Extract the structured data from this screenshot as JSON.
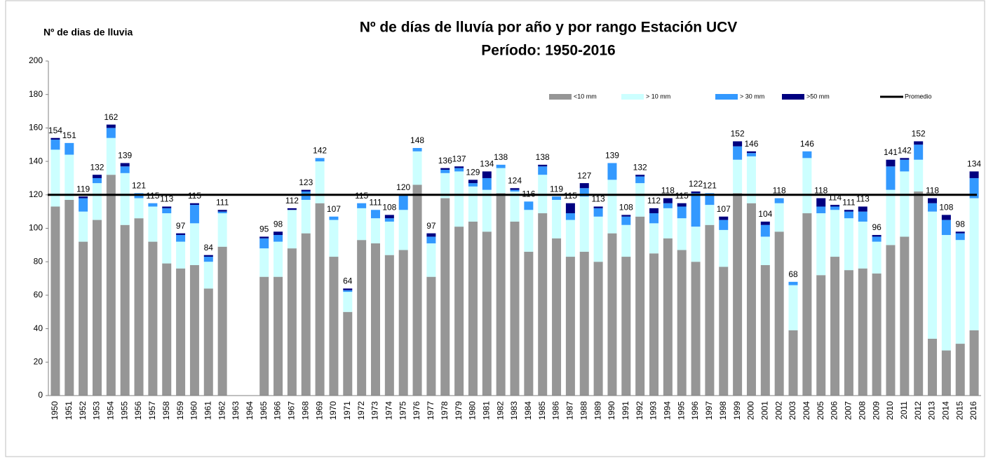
{
  "chart_data": {
    "type": "stacked_bar",
    "title": "Nº de días de lluvía por año y por rango Estación UCV",
    "subtitle": "Período:  1950-2016",
    "ylabel": "Nº de dias de lluvia",
    "categories": [
      "1950",
      "1951",
      "1952",
      "1953",
      "1954",
      "1955",
      "1956",
      "1957",
      "1958",
      "1959",
      "1960",
      "1961",
      "1962",
      "1963",
      "1964",
      "1965",
      "1966",
      "1967",
      "1968",
      "1969",
      "1970",
      "1971",
      "1972",
      "1973",
      "1974",
      "1975",
      "1976",
      "1977",
      "1978",
      "1979",
      "1980",
      "1981",
      "1982",
      "1983",
      "1984",
      "1985",
      "1986",
      "1987",
      "1988",
      "1989",
      "1990",
      "1991",
      "1992",
      "1993",
      "1994",
      "1995",
      "1996",
      "1997",
      "1998",
      "1999",
      "2000",
      "2001",
      "2002",
      "2003",
      "2004",
      "2005",
      "2006",
      "2007",
      "2008",
      "2009",
      "2010",
      "2011",
      "2012",
      "2013",
      "2014",
      "2015",
      "2016"
    ],
    "series": [
      {
        "name": "<10 mm",
        "color": "#969696",
        "values": [
          113,
          117,
          92,
          105,
          132,
          102,
          106,
          92,
          79,
          76,
          78,
          64,
          89,
          null,
          null,
          71,
          71,
          88,
          97,
          115,
          83,
          50,
          93,
          91,
          84,
          87,
          126,
          71,
          118,
          101,
          104,
          98,
          121,
          104,
          86,
          109,
          94,
          83,
          86,
          80,
          97,
          83,
          107,
          85,
          94,
          87,
          80,
          102,
          77,
          121,
          115,
          78,
          98,
          39,
          109,
          72,
          83,
          75,
          76,
          73,
          90,
          95,
          122,
          34,
          27,
          31,
          39
        ]
      },
      {
        "name": "> 10 mm",
        "color": "#ccffff",
        "values": [
          34,
          27,
          18,
          22,
          22,
          31,
          12,
          21,
          30,
          16,
          25,
          16,
          20,
          null,
          null,
          17,
          21,
          23,
          20,
          25,
          22,
          12,
          19,
          15,
          20,
          24,
          20,
          20,
          15,
          33,
          21,
          25,
          15,
          18,
          25,
          23,
          23,
          22,
          33,
          27,
          32,
          19,
          20,
          18,
          18,
          19,
          21,
          12,
          22,
          20,
          28,
          17,
          17,
          27,
          33,
          37,
          28,
          31,
          28,
          19,
          33,
          39,
          19,
          76,
          69,
          62,
          79
        ]
      },
      {
        "name": "> 30 mm",
        "color": "#3399ff",
        "values": [
          6,
          7,
          8,
          3,
          6,
          4,
          3,
          2,
          3,
          4,
          11,
          3,
          1,
          null,
          null,
          6,
          4,
          0,
          5,
          2,
          2,
          1,
          3,
          5,
          2,
          9,
          2,
          4,
          2,
          2,
          2,
          7,
          2,
          1,
          5,
          5,
          2,
          4,
          5,
          5,
          10,
          5,
          4,
          6,
          3,
          7,
          20,
          7,
          6,
          8,
          2,
          7,
          3,
          2,
          4,
          4,
          2,
          4,
          6,
          3,
          14,
          7,
          9,
          5,
          9,
          4,
          12
        ]
      },
      {
        "name": ">50 mm",
        "color": "#000080",
        "values": [
          1,
          0,
          1,
          2,
          2,
          2,
          0,
          0,
          1,
          1,
          1,
          1,
          1,
          null,
          null,
          1,
          2,
          1,
          1,
          0,
          0,
          1,
          0,
          0,
          2,
          0,
          0,
          2,
          1,
          1,
          2,
          4,
          0,
          1,
          0,
          1,
          0,
          6,
          3,
          1,
          0,
          1,
          1,
          3,
          3,
          2,
          1,
          0,
          2,
          3,
          1,
          2,
          0,
          0,
          0,
          5,
          1,
          1,
          3,
          1,
          4,
          1,
          2,
          3,
          3,
          1,
          4
        ]
      }
    ],
    "totals": [
      154,
      151,
      119,
      132,
      162,
      139,
      121,
      115,
      113,
      97,
      115,
      84,
      111,
      null,
      null,
      95,
      98,
      112,
      123,
      142,
      107,
      64,
      115,
      111,
      108,
      120,
      148,
      97,
      136,
      137,
      129,
      134,
      138,
      124,
      116,
      138,
      119,
      115,
      127,
      113,
      139,
      108,
      132,
      112,
      118,
      115,
      122,
      121,
      107,
      152,
      146,
      104,
      118,
      68,
      146,
      118,
      114,
      111,
      113,
      96,
      141,
      142,
      152,
      118,
      108,
      98,
      134
    ],
    "average": {
      "name": "Promedio",
      "value": 120,
      "color": "#000000"
    },
    "ylim": [
      0,
      200
    ],
    "yticks": [
      0,
      20,
      40,
      60,
      80,
      100,
      120,
      140,
      160,
      180,
      200
    ],
    "grid": false,
    "legend": "top-right"
  }
}
